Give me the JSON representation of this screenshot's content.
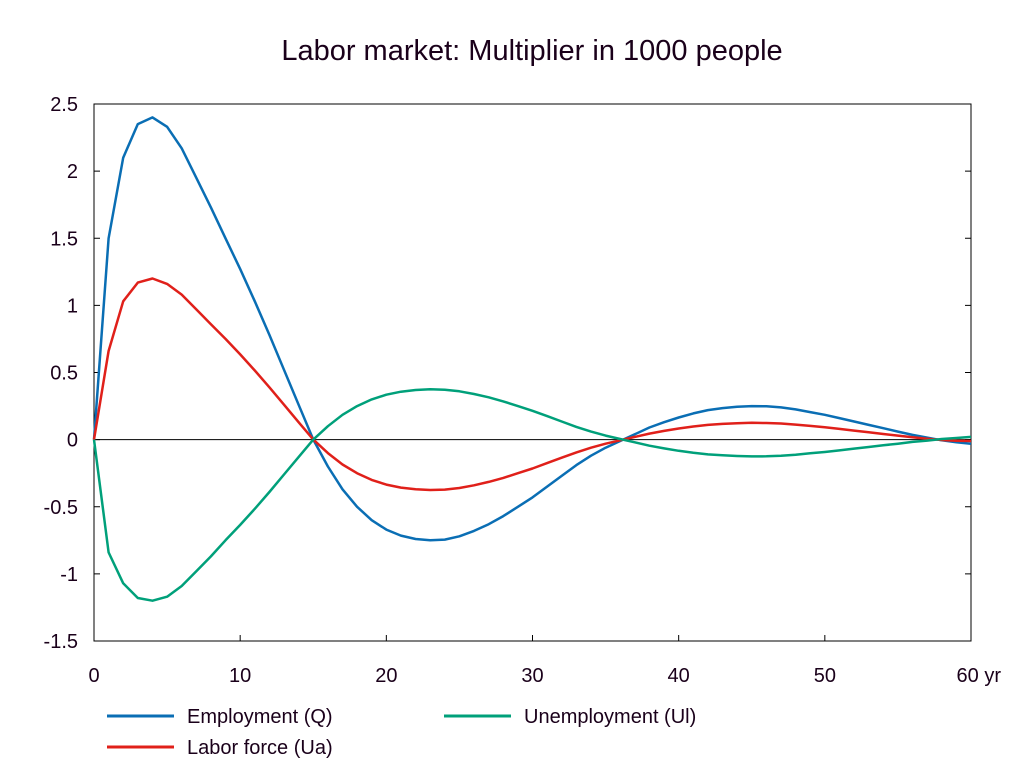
{
  "chart_data": {
    "type": "line",
    "title": "Labor market: Multiplier in 1000 people",
    "xlabel": "yr",
    "ylabel": "",
    "xlim": [
      0,
      60
    ],
    "ylim": [
      -1.5,
      2.5
    ],
    "x_ticks": [
      0,
      10,
      20,
      30,
      40,
      50,
      60
    ],
    "x_tick_labels": [
      "0",
      "10",
      "20",
      "30",
      "40",
      "50",
      "60 yr"
    ],
    "y_ticks": [
      2.5,
      2,
      1.5,
      1,
      0.5,
      0,
      -0.5,
      -1,
      -1.5
    ],
    "y_tick_labels": [
      "2.5",
      "2",
      "1.5",
      "1",
      "0.5",
      "0",
      "-0.5",
      "-1",
      "-1.5"
    ],
    "grid": false,
    "legend_position": "bottom",
    "x": [
      0,
      1,
      2,
      3,
      4,
      5,
      6,
      7,
      8,
      9,
      10,
      11,
      12,
      13,
      14,
      15,
      16,
      17,
      18,
      19,
      20,
      21,
      22,
      23,
      24,
      25,
      26,
      27,
      28,
      29,
      30,
      31,
      32,
      33,
      34,
      35,
      36,
      37,
      38,
      39,
      40,
      41,
      42,
      43,
      44,
      45,
      46,
      47,
      48,
      49,
      50,
      51,
      52,
      53,
      54,
      55,
      56,
      57,
      58,
      59,
      60
    ],
    "series": [
      {
        "name": "Employment (Q)",
        "color": "#0a6eb4",
        "values": [
          0,
          1.5,
          2.1,
          2.35,
          2.4,
          2.33,
          2.17,
          1.95,
          1.73,
          1.5,
          1.27,
          1.03,
          0.78,
          0.52,
          0.26,
          0.0,
          -0.2,
          -0.37,
          -0.5,
          -0.6,
          -0.67,
          -0.715,
          -0.74,
          -0.75,
          -0.745,
          -0.72,
          -0.68,
          -0.63,
          -0.57,
          -0.5,
          -0.43,
          -0.35,
          -0.27,
          -0.19,
          -0.12,
          -0.06,
          -0.01,
          0.04,
          0.09,
          0.13,
          0.165,
          0.195,
          0.22,
          0.235,
          0.245,
          0.25,
          0.248,
          0.24,
          0.225,
          0.205,
          0.185,
          0.16,
          0.135,
          0.11,
          0.085,
          0.06,
          0.035,
          0.015,
          -0.005,
          -0.02,
          -0.03
        ]
      },
      {
        "name": "Labor force (Ua)",
        "color": "#e0201a",
        "values": [
          0,
          0.66,
          1.03,
          1.17,
          1.2,
          1.16,
          1.08,
          0.97,
          0.86,
          0.75,
          0.635,
          0.515,
          0.39,
          0.26,
          0.13,
          0.0,
          -0.1,
          -0.185,
          -0.25,
          -0.3,
          -0.335,
          -0.357,
          -0.37,
          -0.375,
          -0.372,
          -0.36,
          -0.34,
          -0.315,
          -0.285,
          -0.25,
          -0.215,
          -0.175,
          -0.135,
          -0.095,
          -0.06,
          -0.03,
          -0.005,
          0.02,
          0.045,
          0.065,
          0.083,
          0.098,
          0.11,
          0.117,
          0.122,
          0.125,
          0.124,
          0.12,
          0.112,
          0.102,
          0.092,
          0.08,
          0.067,
          0.055,
          0.042,
          0.03,
          0.017,
          0.007,
          -0.003,
          -0.008,
          -0.01
        ]
      },
      {
        "name": "Unemployment (Ul)",
        "color": "#00a07a",
        "values": [
          0,
          -0.84,
          -1.07,
          -1.18,
          -1.2,
          -1.17,
          -1.09,
          -0.98,
          -0.87,
          -0.75,
          -0.635,
          -0.515,
          -0.39,
          -0.26,
          -0.13,
          0.0,
          0.1,
          0.185,
          0.25,
          0.3,
          0.335,
          0.357,
          0.37,
          0.375,
          0.372,
          0.36,
          0.34,
          0.315,
          0.285,
          0.25,
          0.215,
          0.175,
          0.135,
          0.095,
          0.06,
          0.03,
          0.005,
          -0.02,
          -0.045,
          -0.065,
          -0.083,
          -0.098,
          -0.11,
          -0.117,
          -0.122,
          -0.125,
          -0.124,
          -0.12,
          -0.112,
          -0.102,
          -0.092,
          -0.08,
          -0.067,
          -0.055,
          -0.042,
          -0.03,
          -0.017,
          -0.007,
          0.005,
          0.012,
          0.02
        ]
      }
    ]
  }
}
